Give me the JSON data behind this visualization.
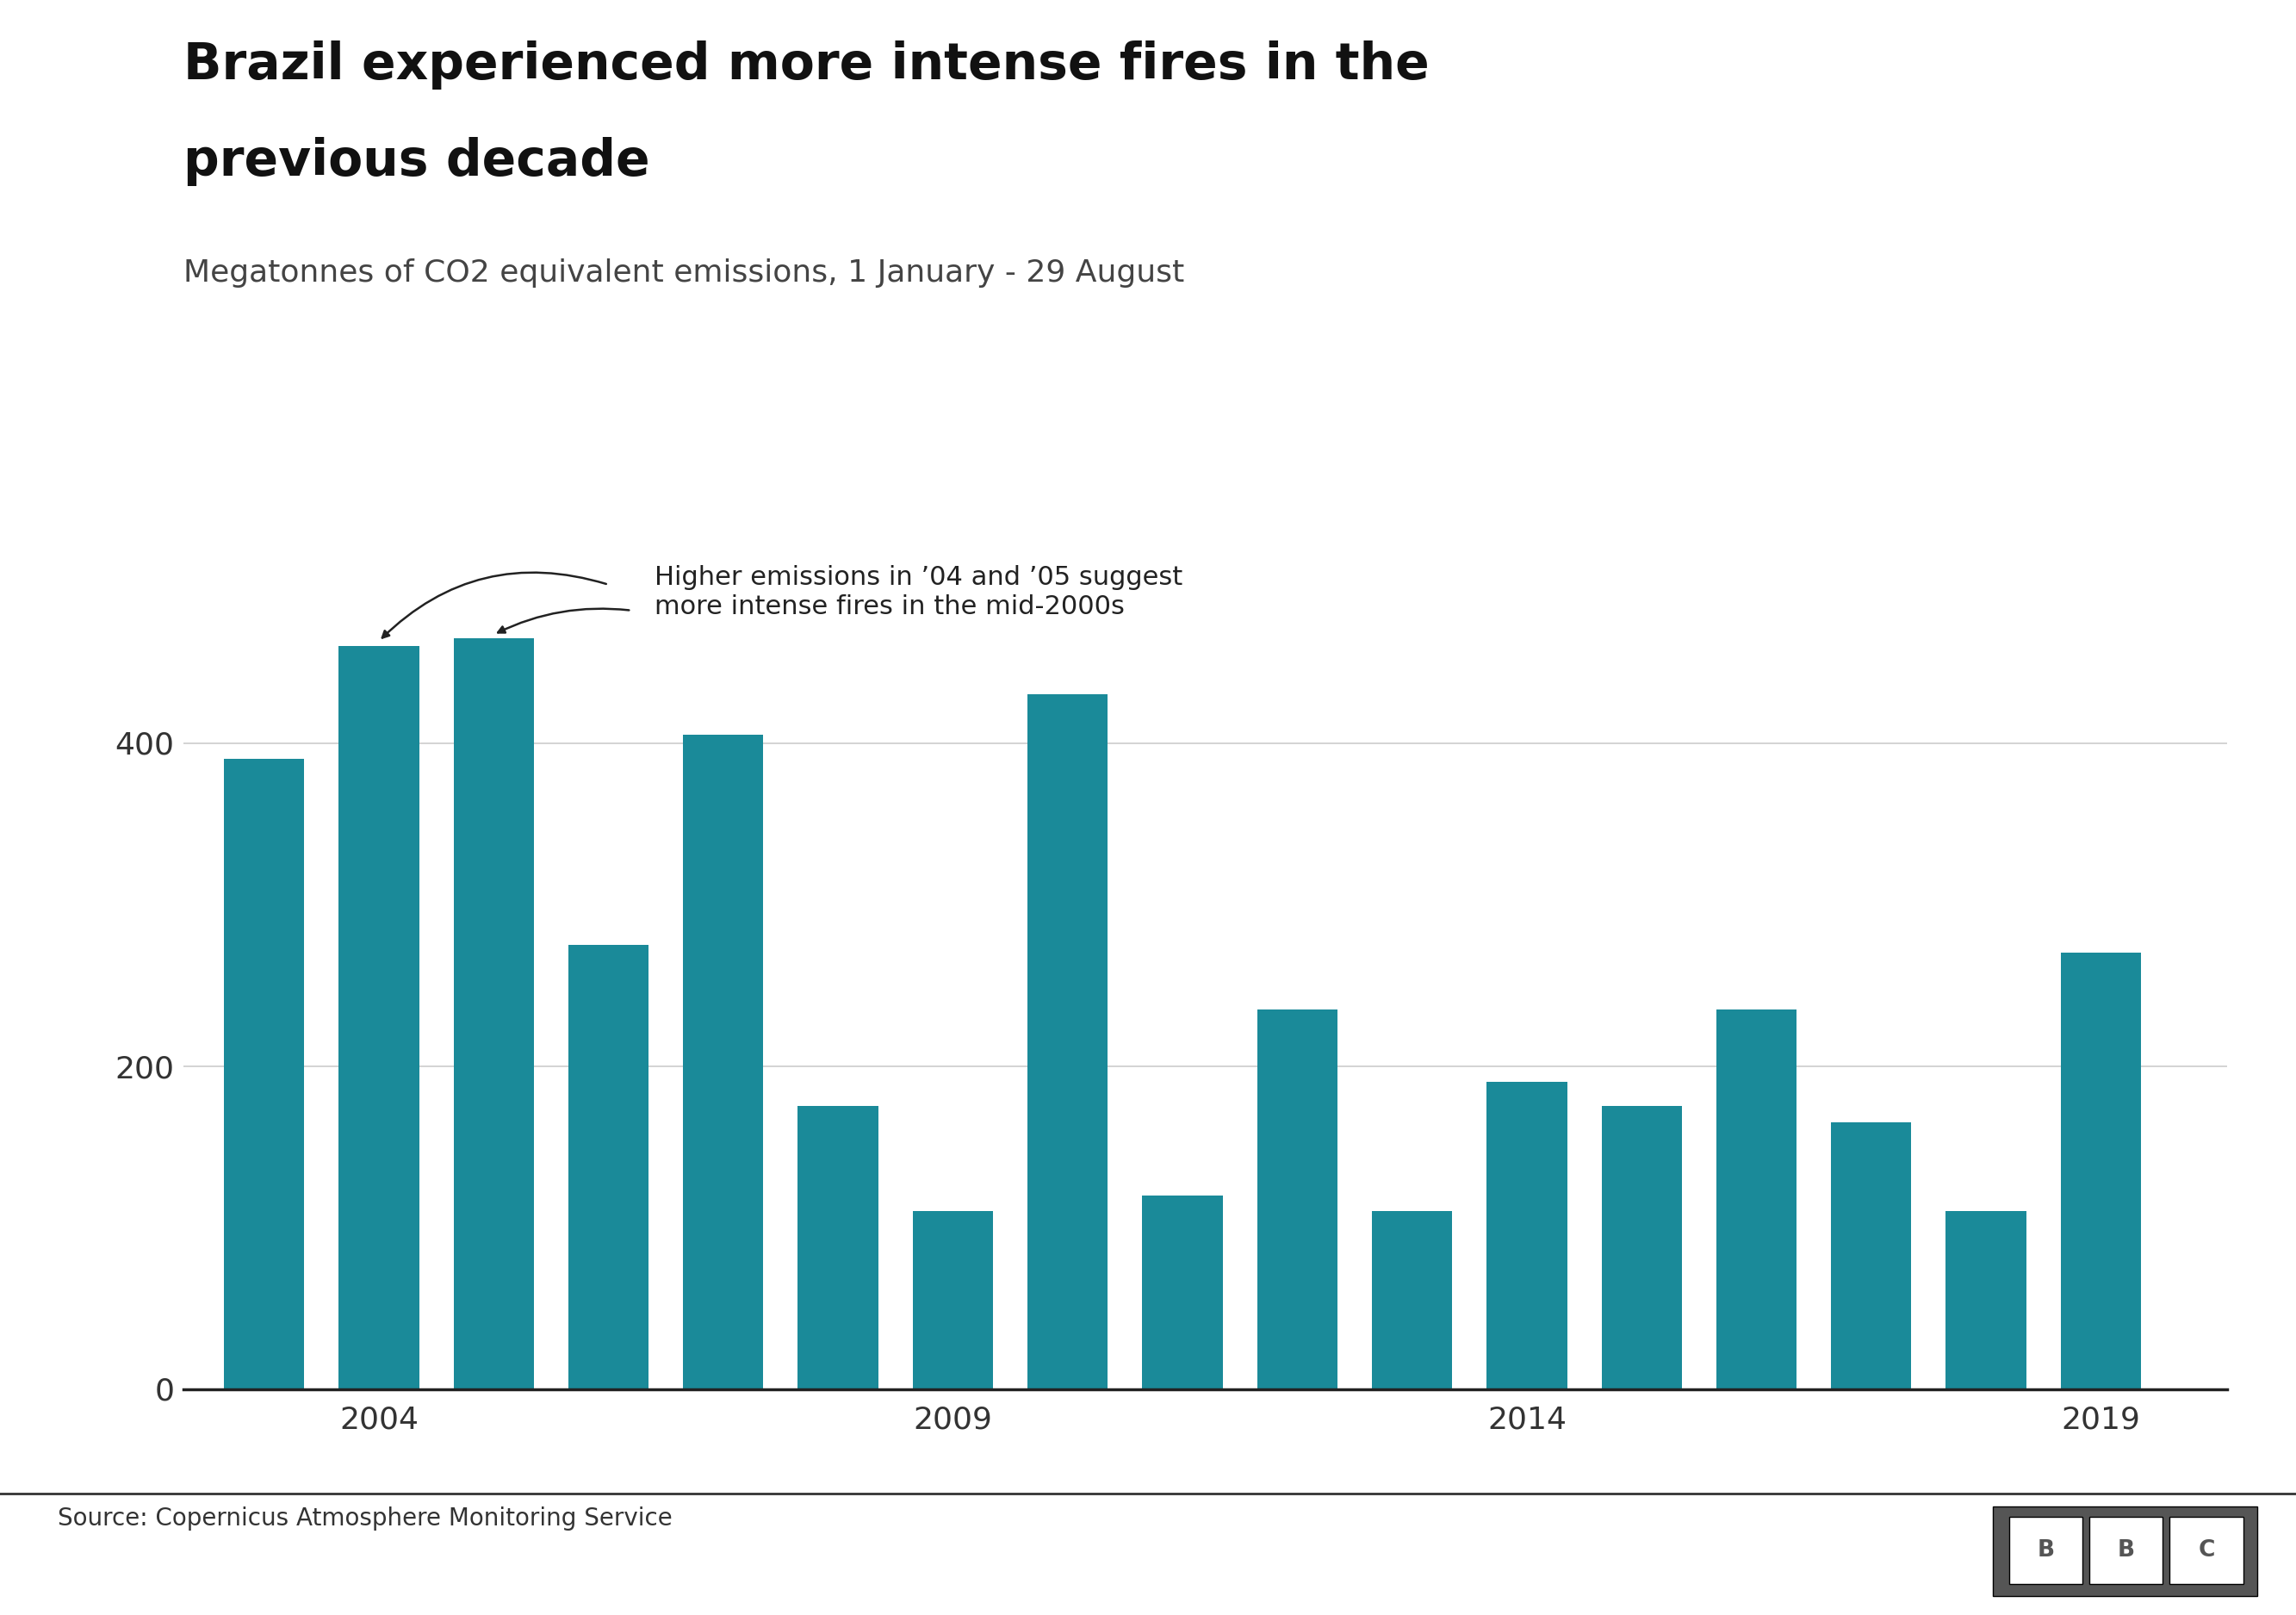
{
  "title_line1": "Brazil experienced more intense fires in the",
  "title_line2": "previous decade",
  "subtitle": "Megatonnes of CO2 equivalent emissions, 1 January - 29 August",
  "source": "Source: Copernicus Atmosphere Monitoring Service",
  "years": [
    2003,
    2004,
    2005,
    2006,
    2007,
    2008,
    2009,
    2010,
    2011,
    2012,
    2013,
    2014,
    2015,
    2016,
    2017,
    2018,
    2019
  ],
  "values": [
    390,
    460,
    465,
    275,
    405,
    175,
    110,
    430,
    120,
    235,
    110,
    190,
    175,
    235,
    165,
    110,
    270
  ],
  "bar_color": "#1a8a99",
  "background_color": "#ffffff",
  "annotation_text": "Higher emissions in ’04 and ’05 suggest\nmore intense fires in the mid-2000s",
  "ylim": [
    0,
    520
  ],
  "yticks": [
    0,
    200,
    400
  ],
  "xtick_years": [
    2004,
    2009,
    2014,
    2019
  ],
  "title_fontsize": 42,
  "subtitle_fontsize": 26,
  "source_fontsize": 20,
  "tick_fontsize": 26,
  "annotation_fontsize": 22,
  "bar_width": 0.7
}
